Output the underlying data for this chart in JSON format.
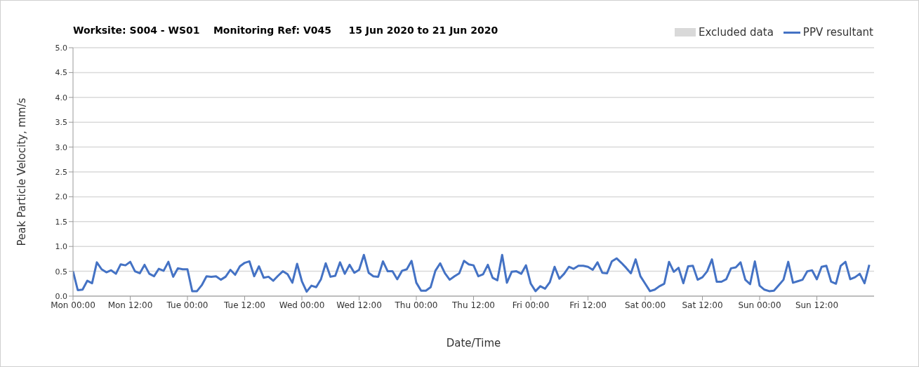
{
  "chart_data": {
    "type": "line",
    "title": "Worksite: S004 - WS01    Monitoring Ref: V045     15 Jun 2020 to 21 Jun 2020",
    "xlabel": "Date/Time",
    "ylabel": "Peak Particle Velocity, mm/s",
    "categories": [
      "Mon 00:00",
      null,
      null,
      null,
      null,
      null,
      null,
      null,
      null,
      null,
      null,
      null,
      "Mon 12:00",
      null,
      null,
      null,
      null,
      null,
      null,
      null,
      null,
      null,
      null,
      null,
      "Tue 00:00",
      null,
      null,
      null,
      null,
      null,
      null,
      null,
      null,
      null,
      null,
      null,
      "Tue 12:00",
      null,
      null,
      null,
      null,
      null,
      null,
      null,
      null,
      null,
      null,
      null,
      "Wed 00:00",
      null,
      null,
      null,
      null,
      null,
      null,
      null,
      null,
      null,
      null,
      null,
      "Wed 12:00",
      null,
      null,
      null,
      null,
      null,
      null,
      null,
      null,
      null,
      null,
      null,
      "Thu 00:00",
      null,
      null,
      null,
      null,
      null,
      null,
      null,
      null,
      null,
      null,
      null,
      "Thu 12:00",
      null,
      null,
      null,
      null,
      null,
      null,
      null,
      null,
      null,
      null,
      null,
      "Fri 00:00",
      null,
      null,
      null,
      null,
      null,
      null,
      null,
      null,
      null,
      null,
      null,
      "Fri 12:00",
      null,
      null,
      null,
      null,
      null,
      null,
      null,
      null,
      null,
      null,
      null,
      "Sat 00:00",
      null,
      null,
      null,
      null,
      null,
      null,
      null,
      null,
      null,
      null,
      null,
      "Sat 12:00",
      null,
      null,
      null,
      null,
      null,
      null,
      null,
      null,
      null,
      null,
      null,
      "Sun 00:00",
      null,
      null,
      null,
      null,
      null,
      null,
      null,
      null,
      null,
      null,
      null,
      "Sun 12:00",
      null,
      null,
      null,
      null,
      null,
      null,
      null,
      null,
      null,
      null,
      null
    ],
    "series": [
      {
        "name": "Excluded data",
        "type": "area",
        "color": "#d9d9d9",
        "values": [
          null,
          null,
          null,
          null,
          null,
          null,
          null,
          null,
          null,
          null,
          null,
          null,
          null,
          null,
          null,
          null,
          null,
          null,
          null,
          null,
          null,
          null,
          null,
          null,
          null,
          null,
          null,
          null,
          null,
          null,
          null,
          null,
          null,
          null,
          null,
          null,
          null,
          null,
          null,
          null,
          null,
          null,
          null,
          null,
          null,
          null,
          null,
          null,
          null,
          null,
          null,
          null,
          null,
          null,
          null,
          null,
          null,
          null,
          null,
          null,
          null,
          null,
          null,
          null,
          null,
          null,
          null,
          null,
          null,
          null,
          null,
          null,
          null,
          null,
          null,
          null,
          null,
          null,
          null,
          null,
          null,
          null,
          null,
          null,
          null,
          null,
          null,
          null,
          null,
          null,
          null,
          null,
          null,
          null,
          null,
          null,
          null,
          null,
          null,
          null,
          null,
          null,
          null,
          null,
          null,
          null,
          null,
          null,
          null,
          null,
          null,
          null,
          null,
          null,
          null,
          null,
          null,
          null,
          null,
          null,
          null,
          null,
          null,
          null,
          null,
          null,
          null,
          null,
          null,
          null,
          null,
          null,
          null,
          null,
          null,
          null,
          null,
          null,
          null,
          null,
          null,
          null,
          null,
          null,
          null,
          null,
          null,
          null,
          null,
          null,
          null,
          null,
          null,
          null,
          null,
          null,
          null,
          null,
          null,
          null,
          null,
          null,
          null,
          null,
          null,
          null,
          null,
          null
        ]
      },
      {
        "name": "PPV resultant",
        "color": "#4472c4",
        "values": [
          0.5,
          0.12,
          0.13,
          0.31,
          0.26,
          0.68,
          0.54,
          0.48,
          0.52,
          0.45,
          0.64,
          0.62,
          0.69,
          0.5,
          0.46,
          0.63,
          0.45,
          0.4,
          0.55,
          0.51,
          0.69,
          0.39,
          0.56,
          0.54,
          0.54,
          0.1,
          0.1,
          0.22,
          0.4,
          0.39,
          0.4,
          0.33,
          0.39,
          0.53,
          0.43,
          0.6,
          0.67,
          0.7,
          0.4,
          0.6,
          0.37,
          0.39,
          0.31,
          0.41,
          0.5,
          0.44,
          0.27,
          0.65,
          0.3,
          0.09,
          0.21,
          0.18,
          0.34,
          0.66,
          0.39,
          0.41,
          0.68,
          0.45,
          0.63,
          0.47,
          0.53,
          0.83,
          0.47,
          0.4,
          0.39,
          0.7,
          0.5,
          0.5,
          0.34,
          0.51,
          0.54,
          0.71,
          0.27,
          0.11,
          0.11,
          0.18,
          0.51,
          0.66,
          0.46,
          0.33,
          0.4,
          0.46,
          0.71,
          0.64,
          0.62,
          0.4,
          0.44,
          0.63,
          0.37,
          0.32,
          0.83,
          0.27,
          0.49,
          0.5,
          0.45,
          0.62,
          0.25,
          0.1,
          0.2,
          0.15,
          0.28,
          0.59,
          0.35,
          0.45,
          0.59,
          0.55,
          0.61,
          0.61,
          0.59,
          0.53,
          0.68,
          0.47,
          0.46,
          0.7,
          0.76,
          0.67,
          0.57,
          0.46,
          0.74,
          0.4,
          0.25,
          0.1,
          0.13,
          0.2,
          0.25,
          0.69,
          0.49,
          0.57,
          0.26,
          0.6,
          0.61,
          0.33,
          0.38,
          0.5,
          0.74,
          0.29,
          0.29,
          0.34,
          0.56,
          0.58,
          0.68,
          0.33,
          0.24,
          0.7,
          0.21,
          0.13,
          0.1,
          0.11,
          0.22,
          0.33,
          0.69,
          0.27,
          0.3,
          0.33,
          0.5,
          0.52,
          0.34,
          0.59,
          0.61,
          0.29,
          0.25,
          0.61,
          0.69,
          0.34,
          0.38,
          0.45,
          0.26,
          0.63
        ]
      }
    ],
    "ylim": [
      0,
      5
    ],
    "yticks": [
      {
        "value": 0,
        "label": "0.0"
      },
      {
        "value": 0.5,
        "label": "0.5"
      },
      {
        "value": 1,
        "label": "1.0"
      },
      {
        "value": 1.5,
        "label": "1.5"
      },
      {
        "value": 2,
        "label": "2.0"
      },
      {
        "value": 2.5,
        "label": "2.5"
      },
      {
        "value": 3,
        "label": "3.0"
      },
      {
        "value": 3.5,
        "label": "3.5"
      },
      {
        "value": 4,
        "label": "4.0"
      },
      {
        "value": 4.5,
        "label": "4.5"
      },
      {
        "value": 5,
        "label": "5.0"
      }
    ],
    "grid": "y",
    "legend": "top right",
    "marker": "none",
    "line_style": "solid"
  }
}
